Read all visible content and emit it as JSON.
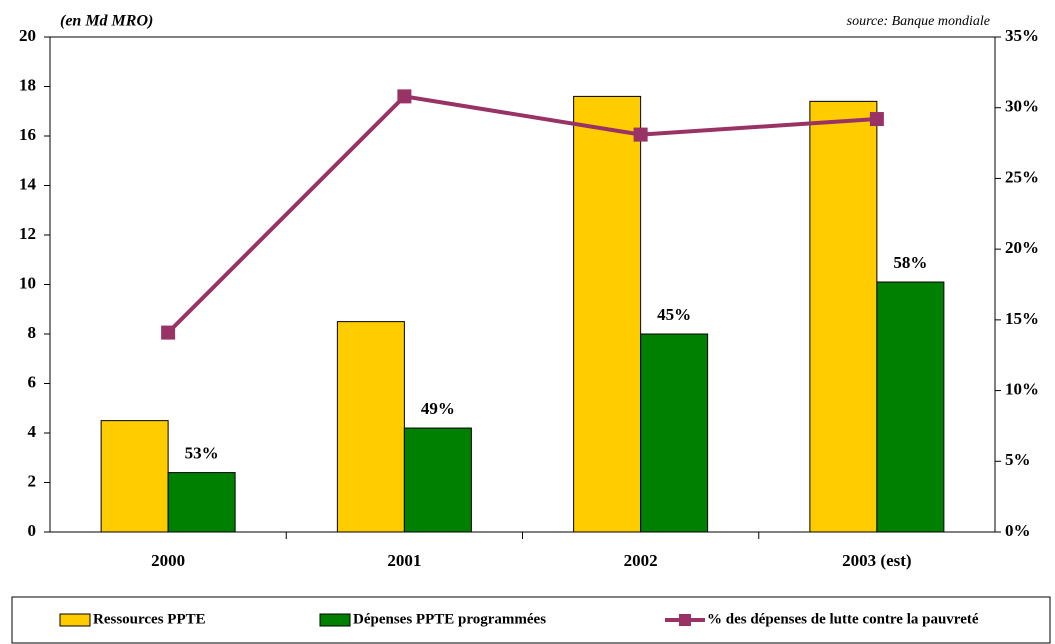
{
  "chart_data": {
    "type": "bar",
    "subtitle": "(en Md MRO)",
    "source": "source: Banque mondiale",
    "categories": [
      "2000",
      "2001",
      "2002",
      "2003 (est)"
    ],
    "series": [
      {
        "name": "Ressources PPTE",
        "color": "#FFCC00",
        "values": [
          4.5,
          8.5,
          17.6,
          17.4
        ]
      },
      {
        "name": "Dépenses PPTE programmées",
        "color": "#008000",
        "values": [
          2.4,
          4.2,
          8.0,
          10.1
        ],
        "value_labels": [
          "53%",
          "49%",
          "45%",
          "58%"
        ]
      },
      {
        "name": "% des dépenses de lutte contre la pauvreté",
        "color": "#993366",
        "type": "line",
        "axis": "y2",
        "values": [
          14.1,
          30.8,
          28.1,
          29.2
        ]
      }
    ],
    "ylim": [
      0,
      20
    ],
    "yticks": [
      0,
      2,
      4,
      6,
      8,
      10,
      12,
      14,
      16,
      18,
      20
    ],
    "y2lim": [
      0,
      35
    ],
    "y2ticks": [
      {
        "value": 0,
        "label": "0%"
      },
      {
        "value": 5,
        "label": "5%"
      },
      {
        "value": 10,
        "label": "10%"
      },
      {
        "value": 15,
        "label": "15%"
      },
      {
        "value": 20,
        "label": "20%"
      },
      {
        "value": 25,
        "label": "25%"
      },
      {
        "value": 30,
        "label": "30%"
      },
      {
        "value": 35,
        "label": "35%"
      }
    ],
    "legend": "bottom"
  }
}
